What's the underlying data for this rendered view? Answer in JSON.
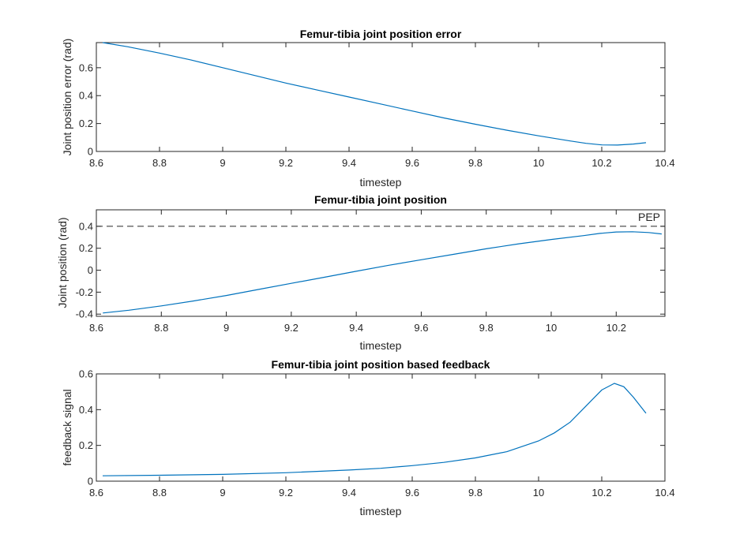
{
  "chart_data": [
    {
      "type": "line",
      "title": "Femur-tibia joint position error",
      "xlabel": "timestep",
      "ylabel": "Joint position error (rad)",
      "xlim": [
        8.6,
        10.4
      ],
      "ylim": [
        0,
        0.78
      ],
      "xticks": [
        8.6,
        8.8,
        9,
        9.2,
        9.4,
        9.6,
        9.8,
        10,
        10.2,
        10.4
      ],
      "xtick_labels": [
        "8.6",
        "8.8",
        "9",
        "9.2",
        "9.4",
        "9.6",
        "9.8",
        "10",
        "10.2",
        "10.4"
      ],
      "yticks": [
        0,
        0.2,
        0.4,
        0.6
      ],
      "ytick_labels": [
        "0",
        "0.2",
        "0.4",
        "0.6"
      ],
      "color": "#0072BD",
      "series": [
        {
          "x": [
            8.62,
            8.7,
            8.8,
            8.9,
            9.0,
            9.1,
            9.2,
            9.3,
            9.4,
            9.5,
            9.6,
            9.7,
            9.8,
            9.9,
            10.0,
            10.1,
            10.15,
            10.2,
            10.25,
            10.3,
            10.34
          ],
          "y": [
            0.78,
            0.75,
            0.705,
            0.655,
            0.6,
            0.545,
            0.49,
            0.44,
            0.39,
            0.34,
            0.29,
            0.24,
            0.195,
            0.152,
            0.112,
            0.075,
            0.058,
            0.047,
            0.046,
            0.053,
            0.063
          ]
        }
      ]
    },
    {
      "type": "line",
      "title": "Femur-tibia joint position",
      "xlabel": "timestep",
      "ylabel": "Joint position (rad)",
      "xlim": [
        8.6,
        10.4
      ],
      "ylim": [
        -0.42,
        0.55
      ],
      "xticks": [
        8.6,
        8.8,
        9,
        9.2,
        9.4,
        9.6,
        9.8,
        10,
        10.2
      ],
      "xtick_labels": [
        "8.6",
        "8.8",
        "9",
        "9.2",
        "9.4",
        "9.6",
        "9.8",
        "10",
        "10.2"
      ],
      "yticks": [
        -0.4,
        -0.2,
        0,
        0.2,
        0.4
      ],
      "ytick_labels": [
        "-0.4",
        "-0.2",
        "0",
        "0.2",
        "0.4"
      ],
      "color": "#0072BD",
      "reference_line": {
        "y": 0.4,
        "label": "PEP",
        "style": "dashed"
      },
      "series": [
        {
          "x": [
            8.62,
            8.7,
            8.8,
            8.9,
            9.0,
            9.1,
            9.2,
            9.3,
            9.4,
            9.5,
            9.6,
            9.7,
            9.8,
            9.9,
            10.0,
            10.1,
            10.15,
            10.2,
            10.25,
            10.3,
            10.34
          ],
          "y": [
            -0.39,
            -0.365,
            -0.325,
            -0.28,
            -0.23,
            -0.175,
            -0.12,
            -0.065,
            -0.01,
            0.045,
            0.095,
            0.145,
            0.195,
            0.24,
            0.28,
            0.315,
            0.335,
            0.348,
            0.35,
            0.343,
            0.33
          ]
        }
      ]
    },
    {
      "type": "line",
      "title": "Femur-tibia joint position based feedback",
      "xlabel": "timestep",
      "ylabel": "feedback signal",
      "xlim": [
        8.6,
        10.4
      ],
      "ylim": [
        0,
        0.6
      ],
      "xticks": [
        8.6,
        8.8,
        9,
        9.2,
        9.4,
        9.6,
        9.8,
        10,
        10.2,
        10.4
      ],
      "xtick_labels": [
        "8.6",
        "8.8",
        "9",
        "9.2",
        "9.4",
        "9.6",
        "9.8",
        "10",
        "10.2",
        "10.4"
      ],
      "yticks": [
        0,
        0.2,
        0.4,
        0.6
      ],
      "ytick_labels": [
        "0",
        "0.2",
        "0.4",
        "0.6"
      ],
      "color": "#0072BD",
      "series": [
        {
          "x": [
            8.62,
            8.8,
            9.0,
            9.2,
            9.4,
            9.5,
            9.6,
            9.7,
            9.8,
            9.9,
            10.0,
            10.05,
            10.1,
            10.15,
            10.2,
            10.24,
            10.27,
            10.3,
            10.34
          ],
          "y": [
            0.03,
            0.033,
            0.038,
            0.047,
            0.062,
            0.072,
            0.087,
            0.105,
            0.13,
            0.165,
            0.225,
            0.27,
            0.33,
            0.42,
            0.51,
            0.547,
            0.528,
            0.47,
            0.38
          ]
        }
      ]
    }
  ]
}
